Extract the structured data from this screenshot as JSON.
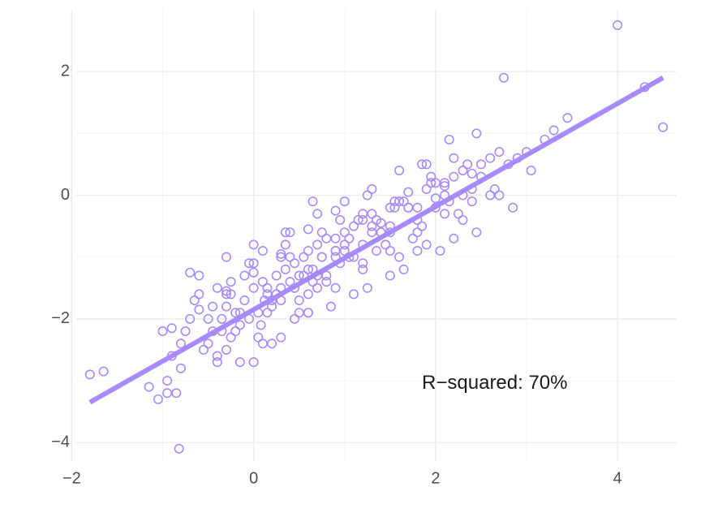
{
  "chart_data": {
    "type": "scatter",
    "title": "",
    "xlabel": "",
    "ylabel": "",
    "xlim": [
      -1.95,
      4.65
    ],
    "ylim": [
      -4.3,
      3.0
    ],
    "x_ticks": [
      -2,
      0,
      2,
      4
    ],
    "y_ticks": [
      -4,
      -2,
      0,
      2
    ],
    "x_tick_labels": [
      "−2",
      "0",
      "2",
      "4"
    ],
    "y_tick_labels": [
      "−4",
      "−2",
      "0",
      "2"
    ],
    "grid": true,
    "legend": "none",
    "point_color": "#a78bfa",
    "line_color": "#a78bfa",
    "regression_line": {
      "x": [
        -1.8,
        4.5
      ],
      "y": [
        -3.35,
        1.9
      ]
    },
    "annotation": {
      "text": "R−squared: 70%",
      "x": 1.85,
      "y": -3.05
    },
    "points": {
      "x": [
        -1.8,
        -1.65,
        -1.15,
        -1.05,
        -0.95,
        -0.95,
        -0.9,
        -0.85,
        -0.82,
        -0.8,
        -0.8,
        -0.75,
        -0.7,
        -0.65,
        -0.6,
        -0.5,
        -0.45,
        -0.4,
        -0.4,
        -0.35,
        -0.3,
        -0.3,
        -0.25,
        -0.25,
        -0.2,
        -0.15,
        -0.1,
        -0.05,
        0.0,
        0.05,
        0.08,
        0.1,
        0.12,
        0.15,
        0.2,
        0.25,
        0.3,
        0.35,
        0.4,
        0.45,
        0.5,
        0.55,
        0.6,
        0.65,
        0.7,
        0.75,
        0.8,
        0.9,
        1.0,
        1.1,
        1.2,
        1.3,
        1.4,
        1.5,
        1.6,
        1.7,
        1.8,
        1.9,
        2.0,
        2.1,
        2.2,
        2.3,
        2.4,
        2.5,
        2.6,
        2.7,
        2.8,
        2.9,
        3.0,
        3.2,
        3.3,
        3.45,
        4.0,
        4.3,
        4.5,
        -1.0,
        -0.6,
        -0.4,
        -0.2,
        0.0,
        0.2,
        0.4,
        0.6,
        0.8,
        1.0,
        1.2,
        1.4,
        1.6,
        1.8,
        2.0,
        2.2,
        2.4,
        2.6,
        -0.7,
        -0.5,
        -0.3,
        -0.1,
        0.1,
        0.3,
        0.5,
        0.7,
        0.9,
        1.1,
        1.3,
        1.5,
        1.7,
        1.9,
        2.1,
        2.3,
        2.5,
        2.7,
        -0.55,
        -0.35,
        -0.15,
        0.05,
        0.25,
        0.45,
        0.65,
        0.85,
        1.05,
        1.25,
        1.45,
        1.65,
        1.85,
        2.05,
        2.25,
        2.45,
        2.65,
        2.85,
        -0.45,
        -0.25,
        -0.05,
        0.15,
        0.35,
        0.55,
        0.75,
        0.95,
        1.15,
        1.35,
        1.55,
        1.75,
        1.95,
        2.15,
        2.35,
        0.0,
        0.3,
        0.6,
        0.9,
        1.2,
        1.5,
        1.8,
        2.1,
        2.4,
        0.1,
        0.4,
        0.7,
        1.0,
        1.3,
        1.6,
        1.9,
        2.2,
        -0.3,
        0.0,
        0.3,
        0.6,
        0.9,
        1.2,
        1.5,
        1.8,
        2.1,
        0.2,
        0.5,
        0.8,
        1.1,
        1.4,
        1.7,
        2.0,
        2.3,
        -0.15,
        0.15,
        0.45,
        0.75,
        1.05,
        1.35,
        1.65,
        1.95,
        0.6,
        0.9,
        1.2,
        1.5,
        0.7,
        1.0,
        1.3,
        0.35,
        0.65,
        0.95,
        1.25,
        1.55,
        -0.9,
        -0.6,
        -0.3,
        0.0,
        0.3,
        0.6,
        0.9,
        1.85,
        2.15,
        2.45,
        2.75,
        3.05
      ],
      "y": [
        -2.9,
        -2.85,
        -3.1,
        -3.3,
        -3.0,
        -3.2,
        -2.6,
        -3.2,
        -4.1,
        -2.8,
        -2.4,
        -2.2,
        -2.0,
        -1.7,
        -1.6,
        -2.4,
        -2.2,
        -1.5,
        -2.6,
        -2.0,
        -1.8,
        -2.5,
        -1.6,
        -2.3,
        -1.9,
        -2.1,
        -1.7,
        -2.0,
        -1.5,
        -1.9,
        -2.1,
        -1.4,
        -1.7,
        -1.6,
        -1.8,
        -1.3,
        -1.5,
        -1.2,
        -1.4,
        -1.1,
        -1.3,
        -1.0,
        -0.9,
        -1.2,
        -0.8,
        -1.0,
        -0.7,
        -0.9,
        -0.6,
        -0.5,
        -0.4,
        -0.3,
        -0.45,
        -0.2,
        -0.1,
        0.05,
        -0.2,
        0.1,
        0.2,
        0.15,
        0.3,
        0.4,
        0.35,
        0.5,
        0.6,
        0.7,
        0.5,
        0.6,
        0.7,
        0.9,
        1.05,
        1.25,
        2.75,
        1.75,
        1.1,
        -2.2,
        -1.3,
        -2.7,
        -2.2,
        -1.1,
        -1.7,
        -1.0,
        -1.9,
        -1.4,
        -0.8,
        -1.2,
        -0.6,
        -1.0,
        -0.4,
        -0.2,
        -0.7,
        0.1,
        0.0,
        -1.25,
        -2.0,
        -1.6,
        -1.3,
        -2.4,
        -1.0,
        -1.9,
        -1.5,
        -0.9,
        -1.6,
        -0.5,
        -1.3,
        -0.2,
        -0.8,
        0.2,
        -0.4,
        0.3,
        0.0,
        -2.5,
        -2.2,
        -1.9,
        -2.3,
        -1.6,
        -2.0,
        -1.4,
        -1.8,
        -1.0,
        -1.5,
        -0.8,
        -1.2,
        -0.5,
        -0.9,
        -0.3,
        -0.6,
        0.1,
        -0.2,
        -1.8,
        -1.4,
        -1.1,
        -1.5,
        -0.8,
        -1.3,
        -0.6,
        -1.1,
        -0.4,
        -0.9,
        -0.1,
        -0.7,
        0.3,
        -0.1,
        0.5,
        -2.7,
        -2.3,
        -1.9,
        -1.5,
        -1.1,
        -0.9,
        -0.6,
        -0.3,
        -0.1,
        -0.9,
        -0.6,
        -0.3,
        -0.1,
        0.1,
        0.4,
        0.5,
        0.6,
        -1.0,
        -0.8,
        -1.7,
        -1.2,
        -0.7,
        -0.3,
        -0.6,
        -0.9,
        0.0,
        -2.4,
        -1.7,
        -1.3,
        -1.0,
        -0.6,
        -0.2,
        -0.05,
        0.0,
        -2.7,
        -1.9,
        -1.5,
        -1.0,
        -0.7,
        -0.4,
        -0.1,
        0.2,
        -1.6,
        -1.0,
        -0.8,
        -0.5,
        -1.3,
        -0.9,
        -0.6,
        -0.6,
        -0.1,
        -0.4,
        0.0,
        -0.2,
        -2.15,
        -1.85,
        -1.55,
        -1.25,
        -0.95,
        -0.55,
        -0.25,
        0.5,
        0.9,
        1.0,
        1.9,
        0.4
      ]
    }
  }
}
